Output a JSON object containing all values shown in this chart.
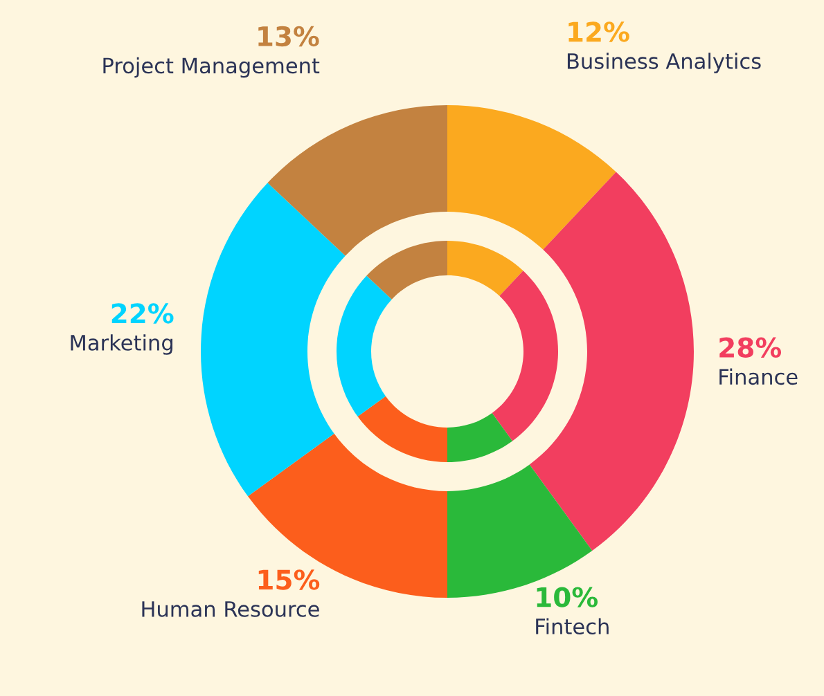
{
  "chart_data": {
    "type": "donut",
    "categories": [
      "Business Analytics",
      "Finance",
      "Fintech",
      "Human Resource",
      "Marketing",
      "Project Management"
    ],
    "series": [
      {
        "values": [
          12,
          28,
          10,
          15,
          22,
          13
        ]
      },
      {
        "values": [
          12,
          28,
          10,
          15,
          22,
          13
        ]
      }
    ],
    "colors": [
      "#fba91f",
      "#f23e5f",
      "#2ab93a",
      "#fc5e1c",
      "#00d4ff",
      "#c38240"
    ],
    "value_labels": [
      "12%",
      "28%",
      "10%",
      "15%",
      "22%",
      "13%"
    ]
  }
}
